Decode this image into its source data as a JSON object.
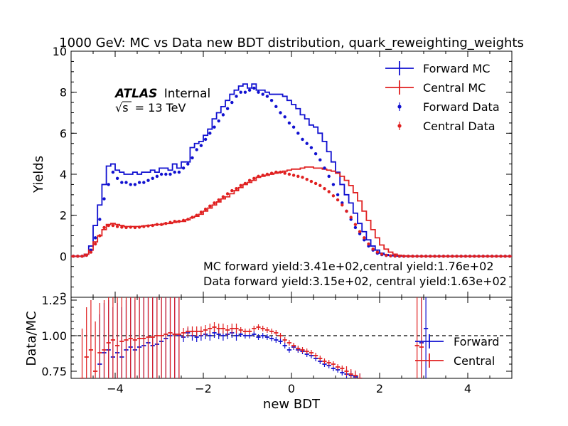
{
  "title": "1000 GeV: MC vs Data new BDT distribution, quark_reweighting_weights",
  "atlas": {
    "label": "ATLAS",
    "sub": "Internal",
    "energy_pre": "s",
    "energy_post": "= 13 TeV"
  },
  "colors": {
    "forward": "#1010d0",
    "central": "#e02020"
  },
  "chart_data": [
    {
      "type": "histogram",
      "panel": "top",
      "ylabel": "Yields",
      "xlim": [
        -5,
        5
      ],
      "ylim": [
        -2,
        10
      ],
      "yticks": [
        "0",
        "2",
        "4",
        "6",
        "8",
        "10"
      ],
      "ytick_values": [
        0,
        2,
        4,
        6,
        8,
        10
      ],
      "bottom_tick": "2",
      "legend_placement": "top-right",
      "x": [
        -4.95,
        -4.85,
        -4.75,
        -4.65,
        -4.55,
        -4.45,
        -4.35,
        -4.25,
        -4.15,
        -4.05,
        -3.95,
        -3.85,
        -3.75,
        -3.65,
        -3.55,
        -3.45,
        -3.35,
        -3.25,
        -3.15,
        -3.05,
        -2.95,
        -2.85,
        -2.75,
        -2.65,
        -2.55,
        -2.45,
        -2.35,
        -2.25,
        -2.15,
        -2.05,
        -1.95,
        -1.85,
        -1.75,
        -1.65,
        -1.55,
        -1.45,
        -1.35,
        -1.25,
        -1.15,
        -1.05,
        -0.95,
        -0.85,
        -0.75,
        -0.65,
        -0.55,
        -0.45,
        -0.35,
        -0.25,
        -0.15,
        -0.05,
        0.05,
        0.15,
        0.25,
        0.35,
        0.45,
        0.55,
        0.65,
        0.75,
        0.85,
        0.95,
        1.05,
        1.15,
        1.25,
        1.35,
        1.45,
        1.55,
        1.65,
        1.75,
        1.85,
        1.95,
        2.05,
        2.15,
        2.25,
        2.35,
        2.45,
        2.55,
        2.65,
        2.75,
        2.85,
        2.95,
        3.05,
        3.15,
        3.25,
        3.35,
        3.45,
        3.55,
        3.65,
        3.75,
        3.85,
        3.95,
        4.05,
        4.15,
        4.25,
        4.35,
        4.45,
        4.55,
        4.65,
        4.75,
        4.85,
        4.95
      ],
      "series": [
        {
          "name": "Forward MC",
          "style": "step",
          "values": [
            0,
            0,
            0,
            0.1,
            0.5,
            1.5,
            2.5,
            3.5,
            4.4,
            4.5,
            4.2,
            4.1,
            4.0,
            4.0,
            4.1,
            4.0,
            4.1,
            4.1,
            4.2,
            4.1,
            4.3,
            4.3,
            4.2,
            4.5,
            4.3,
            4.6,
            4.6,
            5.3,
            5.5,
            5.6,
            5.9,
            6.2,
            6.7,
            7.0,
            7.3,
            7.6,
            7.9,
            8.1,
            8.3,
            8.4,
            8.2,
            8.4,
            8.1,
            8.1,
            8.0,
            7.9,
            7.9,
            7.9,
            7.8,
            7.6,
            7.4,
            7.2,
            6.9,
            6.7,
            6.4,
            6.3,
            6.0,
            5.6,
            5.1,
            4.6,
            4.1,
            3.5,
            3.0,
            2.6,
            2.1,
            1.6,
            1.2,
            0.8,
            0.5,
            0.3,
            0.15,
            0.08,
            0.04,
            0.02,
            0.01,
            0,
            0,
            0,
            0,
            0,
            0,
            0,
            0,
            0,
            0,
            0,
            0,
            0,
            0,
            0,
            0,
            0,
            0,
            0,
            0,
            0,
            0,
            0,
            0,
            0
          ]
        },
        {
          "name": "Central MC",
          "style": "step",
          "values": [
            0,
            0,
            0,
            0.1,
            0.3,
            0.7,
            1.0,
            1.3,
            1.55,
            1.6,
            1.55,
            1.5,
            1.45,
            1.45,
            1.45,
            1.45,
            1.48,
            1.5,
            1.52,
            1.55,
            1.55,
            1.6,
            1.6,
            1.65,
            1.7,
            1.7,
            1.78,
            1.88,
            1.95,
            2.05,
            2.2,
            2.35,
            2.5,
            2.65,
            2.8,
            2.9,
            3.05,
            3.2,
            3.35,
            3.5,
            3.6,
            3.7,
            3.85,
            3.9,
            3.95,
            4.0,
            4.05,
            4.1,
            4.15,
            4.2,
            4.25,
            4.25,
            4.3,
            4.35,
            4.35,
            4.3,
            4.3,
            4.25,
            4.2,
            4.15,
            4.05,
            3.9,
            3.7,
            3.45,
            3.1,
            2.7,
            2.2,
            1.75,
            1.3,
            0.9,
            0.55,
            0.35,
            0.2,
            0.1,
            0.05,
            0.02,
            0.01,
            0,
            0,
            0,
            0,
            0,
            0,
            0,
            0,
            0,
            0,
            0,
            0,
            0,
            0,
            0,
            0,
            0,
            0,
            0,
            0,
            0,
            0,
            0
          ]
        },
        {
          "name": "Forward Data",
          "style": "points",
          "values": [
            0,
            0,
            0,
            0.05,
            0.3,
            0.9,
            1.8,
            2.8,
            3.5,
            4.1,
            3.8,
            3.6,
            3.6,
            3.5,
            3.5,
            3.6,
            3.6,
            3.7,
            3.8,
            3.9,
            4.0,
            4.0,
            4.0,
            4.1,
            4.1,
            4.3,
            4.5,
            4.8,
            5.2,
            5.4,
            5.7,
            6.0,
            6.3,
            6.6,
            6.9,
            7.2,
            7.5,
            7.8,
            8.0,
            8.0,
            8.1,
            8.2,
            8.0,
            7.9,
            7.8,
            7.6,
            7.3,
            7.0,
            6.8,
            6.5,
            6.3,
            6.0,
            5.7,
            5.5,
            5.3,
            5.0,
            4.7,
            4.3,
            3.9,
            3.5,
            3.0,
            2.6,
            2.2,
            1.8,
            1.4,
            1.1,
            0.8,
            0.5,
            0.3,
            0.15,
            0.08,
            0.04,
            0.02,
            0.01,
            0,
            0,
            0,
            0,
            0,
            0,
            0,
            0,
            0,
            0,
            0,
            0,
            0,
            0,
            0,
            0,
            0,
            0,
            0,
            0,
            0,
            0,
            0,
            0,
            0,
            0
          ]
        },
        {
          "name": "Central Data",
          "style": "points",
          "values": [
            0,
            0,
            0,
            0.05,
            0.2,
            0.6,
            1.0,
            1.4,
            1.5,
            1.5,
            1.45,
            1.42,
            1.4,
            1.42,
            1.4,
            1.42,
            1.45,
            1.48,
            1.5,
            1.55,
            1.55,
            1.6,
            1.65,
            1.7,
            1.7,
            1.75,
            1.8,
            1.9,
            2.0,
            2.15,
            2.3,
            2.45,
            2.6,
            2.75,
            2.9,
            3.05,
            3.2,
            3.3,
            3.45,
            3.55,
            3.7,
            3.8,
            3.9,
            3.95,
            4.0,
            4.05,
            4.1,
            4.1,
            4.05,
            4.0,
            3.95,
            3.9,
            3.85,
            3.75,
            3.65,
            3.55,
            3.45,
            3.3,
            3.15,
            2.95,
            2.75,
            2.5,
            2.2,
            1.9,
            1.55,
            1.2,
            0.9,
            0.6,
            0.35,
            0.2,
            0.1,
            0.05,
            0.02,
            0.01,
            0,
            0,
            0,
            0,
            0,
            0,
            0,
            0,
            0,
            0,
            0,
            0,
            0,
            0,
            0,
            0,
            0,
            0,
            0,
            0,
            0,
            0,
            0,
            0,
            0,
            0
          ]
        }
      ],
      "annotations": [
        "MC forward yield:3.41e+02,central yield:1.76e+02",
        "Data forward yield:3.15e+02, central yield:1.63e+02"
      ]
    },
    {
      "type": "histogram",
      "panel": "ratio",
      "xlabel": "new BDT",
      "ylabel": "Data/MC",
      "xlim": [
        -5,
        5
      ],
      "ylim": [
        0.7,
        1.27
      ],
      "xticks": [
        "−4",
        "−2",
        "0",
        "2",
        "4"
      ],
      "xtick_values": [
        -4,
        -2,
        0,
        2,
        4
      ],
      "yticks": [
        "0.75",
        "1.00",
        "1.25"
      ],
      "ytick_values": [
        0.75,
        1.0,
        1.25
      ],
      "reference_line": 1.0,
      "legend_placement": "right",
      "series": [
        {
          "name": "Forward",
          "x": [
            -4.35,
            -4.25,
            -4.15,
            -4.05,
            -3.95,
            -3.85,
            -3.75,
            -3.65,
            -3.55,
            -3.45,
            -3.35,
            -3.25,
            -3.15,
            -3.05,
            -2.95,
            -2.85,
            -2.75,
            -2.65,
            -2.55,
            -2.45,
            -2.35,
            -2.25,
            -2.15,
            -2.05,
            -1.95,
            -1.85,
            -1.75,
            -1.65,
            -1.55,
            -1.45,
            -1.35,
            -1.25,
            -1.15,
            -1.05,
            -0.95,
            -0.85,
            -0.75,
            -0.65,
            -0.55,
            -0.45,
            -0.35,
            -0.25,
            -0.15,
            -0.05,
            0.05,
            0.15,
            0.25,
            0.35,
            0.45,
            0.55,
            0.65,
            0.75,
            0.85,
            0.95,
            1.05,
            1.15,
            1.25,
            1.35,
            1.45,
            1.55,
            2.95,
            3.05
          ],
          "values": [
            0.8,
            0.88,
            0.9,
            0.85,
            0.88,
            0.85,
            0.9,
            0.92,
            0.9,
            0.92,
            0.93,
            0.95,
            0.93,
            0.94,
            0.96,
            0.98,
            1.0,
            1.01,
            1.0,
            0.99,
            1.02,
            1.0,
            0.99,
            1.0,
            1.01,
            1.0,
            1.02,
            1.01,
            1.0,
            1.01,
            1.02,
            1.0,
            1.01,
            1.0,
            1.0,
            1.01,
            0.99,
            1.0,
            0.99,
            0.98,
            0.97,
            0.96,
            0.93,
            0.9,
            0.92,
            0.9,
            0.89,
            0.87,
            0.86,
            0.84,
            0.82,
            0.8,
            0.79,
            0.77,
            0.76,
            0.74,
            0.73,
            0.72,
            0.71,
            0.7,
            0.95,
            1.05
          ]
        },
        {
          "name": "Central",
          "x": [
            -4.75,
            -4.65,
            -4.55,
            -4.45,
            -4.35,
            -4.25,
            -4.15,
            -4.05,
            -3.95,
            -3.85,
            -3.75,
            -3.65,
            -3.55,
            -3.45,
            -3.35,
            -3.25,
            -3.15,
            -3.05,
            -2.95,
            -2.85,
            -2.75,
            -2.65,
            -2.55,
            -2.45,
            -2.35,
            -2.25,
            -2.15,
            -2.05,
            -1.95,
            -1.85,
            -1.75,
            -1.65,
            -1.55,
            -1.45,
            -1.35,
            -1.25,
            -1.15,
            -1.05,
            -0.95,
            -0.85,
            -0.75,
            -0.65,
            -0.55,
            -0.45,
            -0.35,
            -0.25,
            -0.15,
            -0.05,
            0.05,
            0.15,
            0.25,
            0.35,
            0.45,
            0.55,
            0.65,
            0.75,
            0.85,
            0.95,
            1.05,
            1.15,
            1.25,
            1.35,
            1.45,
            1.55,
            2.85,
            2.95
          ],
          "values": [
            0.7,
            0.85,
            0.9,
            0.75,
            0.88,
            0.9,
            0.95,
            0.97,
            0.93,
            0.96,
            0.97,
            0.98,
            0.97,
            0.98,
            0.98,
            0.99,
            0.99,
            1.0,
            1.0,
            1.01,
            1.02,
            1.01,
            1.01,
            1.02,
            1.03,
            1.03,
            1.03,
            1.03,
            1.04,
            1.05,
            1.06,
            1.05,
            1.05,
            1.04,
            1.05,
            1.05,
            1.04,
            1.03,
            1.03,
            1.05,
            1.06,
            1.05,
            1.04,
            1.03,
            1.02,
            1.0,
            0.97,
            0.95,
            0.93,
            0.91,
            0.9,
            0.89,
            0.88,
            0.86,
            0.84,
            0.82,
            0.81,
            0.8,
            0.78,
            0.77,
            0.75,
            0.73,
            0.72,
            0.7,
            0.93,
            0.92
          ]
        }
      ]
    }
  ]
}
